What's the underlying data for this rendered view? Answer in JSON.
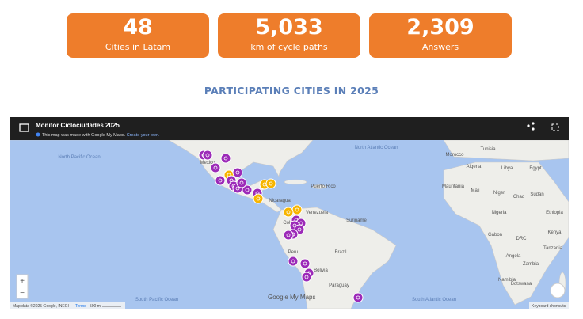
{
  "stats": [
    {
      "value": "48",
      "label": "Cities in Latam"
    },
    {
      "value": "5,033",
      "label": "km of cycle paths"
    },
    {
      "value": "2,309",
      "label": "Answers"
    }
  ],
  "heading": "PARTICIPATING CITIES IN 2025",
  "map": {
    "title": "Monitor Ciclociudades 2025",
    "subtitle": "This map was made with Google My Maps.",
    "create_link": "Create your own.",
    "labels": [
      "North Pacific Ocean",
      "North Atlantic Ocean",
      "South Pacific Ocean",
      "South Atlantic Ocean",
      "Mexico",
      "Venezuela",
      "Colombia",
      "Peru",
      "Brazil",
      "Bolivia",
      "Paraguay",
      "Suriname",
      "Morocco",
      "Tunisia",
      "Algeria",
      "Libya",
      "Egypt",
      "Mauritania",
      "Mali",
      "Niger",
      "Chad",
      "Sudan",
      "Nigeria",
      "Ethiopia",
      "Gabon",
      "DRC",
      "Kenya",
      "Tanzania",
      "Angola",
      "Zambia",
      "Namibia",
      "Botswana",
      "Puerto Rico",
      "Nicaragua"
    ],
    "attribution": "Map data ©2025 Google, INEGI",
    "terms": "Terms",
    "scale": "500 mi",
    "logo": "Google My Maps",
    "shortcuts": "Keyboard shortcuts",
    "zoom_in": "+",
    "zoom_out": "−"
  }
}
